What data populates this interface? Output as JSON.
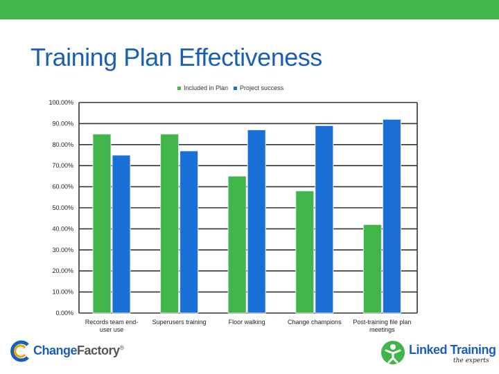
{
  "slide": {
    "title": "Training Plan Effectiveness",
    "top_bar_color": "#3fb54a"
  },
  "logos": {
    "left": {
      "name_part1": "Change",
      "name_part2": "Factory",
      "mark": "®",
      "colors": [
        "#1a5fb4",
        "#f0a500",
        "#555555"
      ]
    },
    "right": {
      "name": "Linked Training",
      "tagline": "the experts",
      "colors": [
        "#3fb54a",
        "#1a5fb4"
      ]
    }
  },
  "chart_data": {
    "type": "bar",
    "title": "",
    "categories": [
      "Records team end-user use",
      "Superusers training",
      "Floor walking",
      "Change champions",
      "Post-training file plan meetings"
    ],
    "category_label_lines": [
      [
        "Records team end-",
        "user use"
      ],
      [
        "Superusers training"
      ],
      [
        "Floor walking"
      ],
      [
        "Change champions"
      ],
      [
        "Post-training file plan",
        "meetings"
      ]
    ],
    "series": [
      {
        "name": "Included in Plan",
        "color": "#3fb54a",
        "values": [
          85,
          85,
          65,
          58,
          42
        ]
      },
      {
        "name": "Project success",
        "color": "#1a6fd6",
        "values": [
          75,
          77,
          87,
          89,
          92
        ]
      }
    ],
    "ylim": [
      0,
      100
    ],
    "yticks": [
      0,
      10,
      20,
      30,
      40,
      50,
      60,
      70,
      80,
      90,
      100
    ],
    "ytick_labels": [
      "0.00%",
      "10.00%",
      "20.00%",
      "30.00%",
      "40.00%",
      "50.00%",
      "60.00%",
      "70.00%",
      "80.00%",
      "90.00%",
      "100.00%"
    ],
    "grid": true,
    "legend_position": "top-center"
  }
}
